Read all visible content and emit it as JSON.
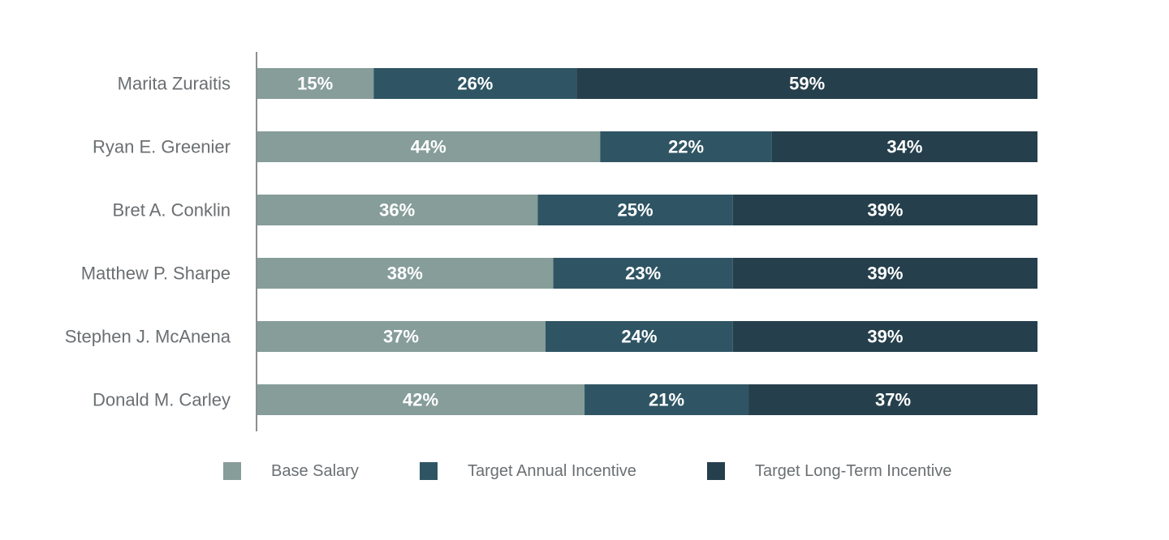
{
  "chart_data": {
    "type": "bar",
    "orientation": "horizontal",
    "stacked": true,
    "categories": [
      "Marita Zuraitis",
      "Ryan E. Greenier",
      "Bret A. Conklin",
      "Matthew P. Sharpe",
      "Stephen J. McAnena",
      "Donald M. Carley"
    ],
    "series": [
      {
        "name": "Base Salary",
        "values": [
          15,
          44,
          36,
          38,
          37,
          42
        ],
        "labels": [
          "15%",
          "44%",
          "36%",
          "38%",
          "37%",
          "42%"
        ],
        "color": "#869d99"
      },
      {
        "name": "Target Annual Incentive",
        "values": [
          26,
          22,
          25,
          23,
          24,
          21
        ],
        "labels": [
          "26%",
          "22%",
          "25%",
          "23%",
          "24%",
          "21%"
        ],
        "color": "#2f5564"
      },
      {
        "name": "Target Long-Term Incentive",
        "values": [
          59,
          34,
          39,
          39,
          39,
          37
        ],
        "labels": [
          "59%",
          "34%",
          "39%",
          "39%",
          "39%",
          "37%"
        ],
        "color": "#253f4c"
      }
    ],
    "xlim": [
      0,
      100
    ],
    "grid": false,
    "legend_position": "bottom"
  }
}
